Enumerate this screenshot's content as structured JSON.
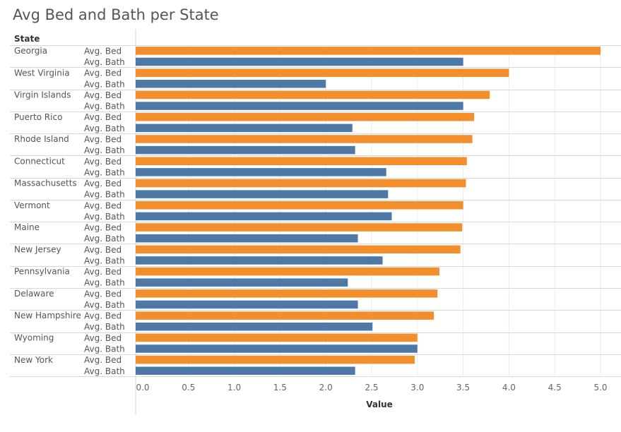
{
  "chart_data": {
    "type": "bar",
    "orientation": "horizontal",
    "title": "Avg Bed and Bath per State",
    "row_header": "State",
    "xlabel": "Value",
    "xlim": [
      0,
      5.2
    ],
    "xticks": [
      "0.0",
      "0.5",
      "1.0",
      "1.5",
      "2.0",
      "2.5",
      "3.0",
      "3.5",
      "4.0",
      "4.5",
      "5.0"
    ],
    "grid": true,
    "measures": [
      {
        "name": "Avg. Bed",
        "color": "#f28e2b"
      },
      {
        "name": "Avg. Bath",
        "color": "#4e79a7"
      }
    ],
    "categories": [
      "Georgia",
      "West Virginia",
      "Virgin Islands",
      "Puerto Rico",
      "Rhode Island",
      "Connecticut",
      "Massachusetts",
      "Vermont",
      "Maine",
      "New Jersey",
      "Pennsylvania",
      "Delaware",
      "New Hampshire",
      "Wyoming",
      "New York"
    ],
    "series": [
      {
        "name": "Avg. Bed",
        "values": [
          5.0,
          4.0,
          3.79,
          3.62,
          3.6,
          3.54,
          3.53,
          3.5,
          3.49,
          3.47,
          3.24,
          3.22,
          3.18,
          3.0,
          2.97
        ]
      },
      {
        "name": "Avg. Bath",
        "values": [
          3.5,
          2.0,
          3.5,
          2.29,
          2.32,
          2.66,
          2.68,
          2.72,
          2.35,
          2.62,
          2.24,
          2.35,
          2.51,
          3.0,
          2.32
        ]
      }
    ]
  }
}
